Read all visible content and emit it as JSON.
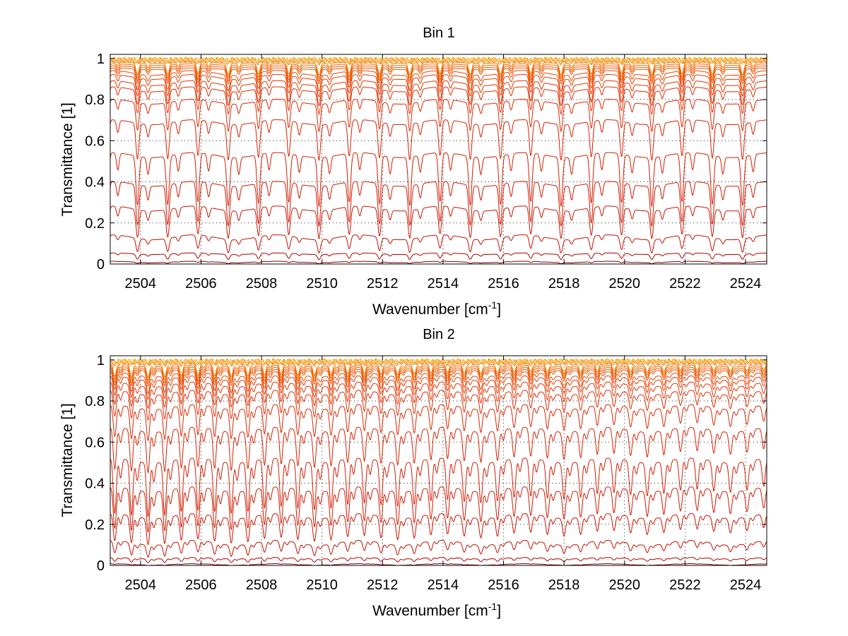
{
  "chart_data": [
    {
      "type": "line",
      "title": "Bin 1",
      "xlabel": "Wavenumber [cm",
      "xlabel_sup": "-1",
      "xlabel_end": "]",
      "ylabel": "Transmittance [1]",
      "xlim": [
        2503,
        2524.7
      ],
      "ylim": [
        0,
        1.02
      ],
      "xticks": [
        "2504",
        "2506",
        "2508",
        "2510",
        "2512",
        "2514",
        "2516",
        "2518",
        "2520",
        "2522",
        "2524"
      ],
      "yticks": [
        "0",
        "0.2",
        "0.4",
        "0.6",
        "0.8",
        "1"
      ],
      "grid": true,
      "line_period_cm": 1.0,
      "line_phase_cm": 2503.9,
      "series_baseline_transmittance": [
        0.01,
        0.05,
        0.13,
        0.27,
        0.39,
        0.53,
        0.69,
        0.79,
        0.85,
        0.88,
        0.91,
        0.93,
        0.95,
        0.96,
        0.97,
        0.98,
        0.985,
        0.99,
        0.995,
        1.0
      ],
      "series_colors": [
        "#8b0000",
        "#b00000",
        "#c01000",
        "#c81400",
        "#d01800",
        "#d41c00",
        "#d82000",
        "#dc2600",
        "#e02c00",
        "#e43200",
        "#e83a00",
        "#ec4400",
        "#ef5000",
        "#f25c00",
        "#f46800",
        "#f67400",
        "#f88000",
        "#fa8c00",
        "#fb9a00",
        "#fca800"
      ],
      "absorption_depth_profile": "roughly uniform across the range"
    },
    {
      "type": "line",
      "title": "Bin 2",
      "xlabel": "Wavenumber [cm",
      "xlabel_sup": "-1",
      "xlabel_end": "]",
      "ylabel": "Transmittance [1]",
      "xlim": [
        2503,
        2524.7
      ],
      "ylim": [
        0,
        1.02
      ],
      "xticks": [
        "2504",
        "2506",
        "2508",
        "2510",
        "2512",
        "2514",
        "2516",
        "2518",
        "2520",
        "2522",
        "2524"
      ],
      "yticks": [
        "0",
        "0.2",
        "0.4",
        "0.6",
        "0.8",
        "1"
      ],
      "grid": true,
      "line_period_cm": 0.55,
      "line_phase_cm": 2503.7,
      "series_baseline_transmittance": [
        0.005,
        0.035,
        0.11,
        0.24,
        0.37,
        0.51,
        0.66,
        0.77,
        0.84,
        0.88,
        0.91,
        0.93,
        0.95,
        0.96,
        0.97,
        0.98,
        0.985,
        0.99,
        0.995,
        1.0
      ],
      "series_colors": [
        "#8b0000",
        "#b00000",
        "#c01000",
        "#c81400",
        "#d01800",
        "#d41c00",
        "#d82000",
        "#dc2600",
        "#e02c00",
        "#e43200",
        "#e83a00",
        "#ec4400",
        "#ef5000",
        "#f25c00",
        "#f46800",
        "#f67400",
        "#f88000",
        "#fa8c00",
        "#fb9a00",
        "#fca800"
      ],
      "absorption_depth_profile": "deeper at low wavenumbers, weakening toward 2524"
    }
  ]
}
